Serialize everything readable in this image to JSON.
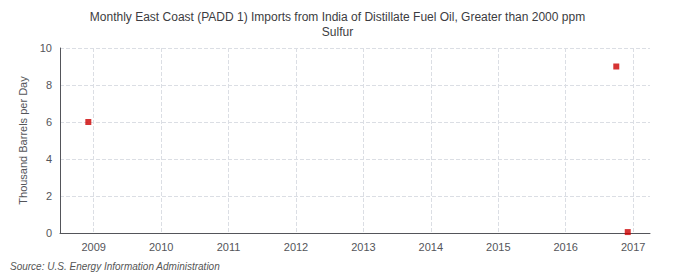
{
  "chart_data": {
    "type": "scatter",
    "title": "Monthly East Coast (PADD 1) Imports from India of Distillate Fuel Oil, Greater than 2000 ppm\nSulfur",
    "ylabel": "Thousand Barrels per Day",
    "source": "Source: U.S. Energy Information Administration",
    "x": [
      2008.92,
      2016.75,
      2016.92
    ],
    "values": [
      6.0,
      9.0,
      0.05
    ],
    "color": "#cc0000",
    "marker": "square",
    "xlim": [
      2008.5,
      2017.25
    ],
    "xticks": [
      2009,
      2010,
      2011,
      2012,
      2013,
      2014,
      2015,
      2016,
      2017
    ],
    "ylim": [
      0,
      10
    ],
    "yticks": [
      0,
      2,
      4,
      6,
      8,
      10
    ],
    "grid": true
  }
}
